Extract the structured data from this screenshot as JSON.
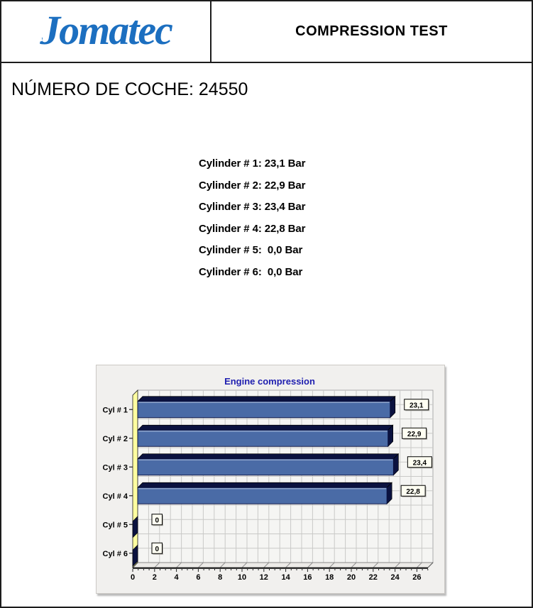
{
  "header": {
    "logo_text": "Jomatec",
    "report_title": "COMPRESSION TEST"
  },
  "car_number": "NÚMERO DE COCHE: 24550",
  "readings": {
    "lines": [
      "Cylinder # 1: 23,1 Bar",
      "Cylinder # 2: 22,9 Bar",
      "Cylinder # 3: 23,4 Bar",
      "Cylinder # 4: 22,8 Bar",
      "Cylinder # 5:  0,0 Bar",
      "Cylinder # 6:  0,0 Bar"
    ]
  },
  "chart_data": {
    "type": "bar",
    "orientation": "horizontal",
    "style": "3d",
    "title": "Engine compression",
    "categories": [
      "Cyl # 1",
      "Cyl # 2",
      "Cyl # 3",
      "Cyl # 4",
      "Cyl # 5",
      "Cyl # 6"
    ],
    "values": [
      23.1,
      22.9,
      23.4,
      22.8,
      0,
      0
    ],
    "value_labels": [
      "23,1",
      "22,9",
      "23,4",
      "22,8",
      "0",
      "0"
    ],
    "xlabel": "",
    "ylabel": "",
    "xlim": [
      0,
      26
    ],
    "x_ticks": [
      0,
      2,
      4,
      6,
      8,
      10,
      12,
      14,
      16,
      18,
      20,
      22,
      24,
      26
    ],
    "grid": true,
    "legend": false,
    "colors": {
      "title": "#2020b0",
      "bar_face": "#4a6ba6",
      "bar_dark": "#0b123f",
      "wall": "#ffffa0",
      "plot_bg": "#f5f5f3",
      "grid_line": "#c9c9c7",
      "floor": "#eceae7",
      "panel_bg": "#f1f0ee",
      "value_box_bg": "#fffff2",
      "axis_text": "#000000"
    }
  }
}
